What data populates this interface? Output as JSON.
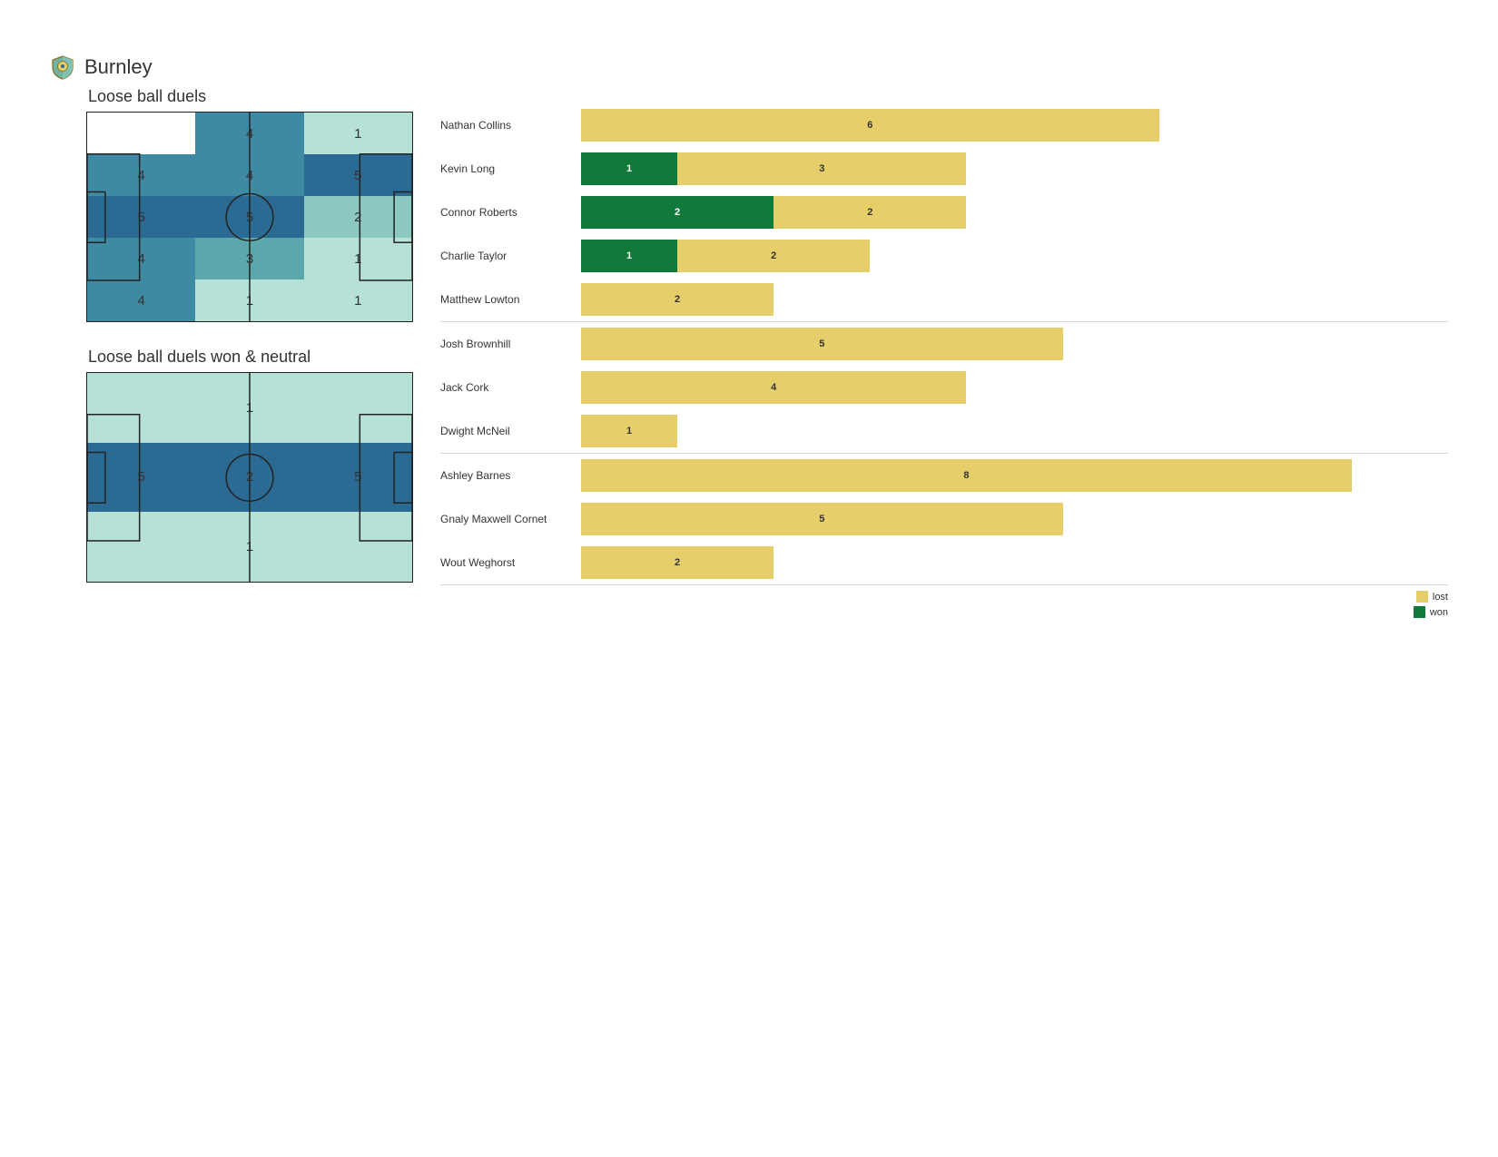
{
  "team": {
    "name": "Burnley"
  },
  "colors": {
    "won": "#0f7a3a",
    "lost": "#e6ce6a",
    "heat_scale": {
      "0": "#ffffff",
      "1": "#b6e1d7",
      "2": "#8cc9c1",
      "3": "#5ba7ab",
      "4": "#3f8aa3",
      "5": "#2b6a92"
    },
    "pitch_line": "#222222"
  },
  "heatmaps": {
    "duels": {
      "title": "Loose ball duels",
      "rows": 5,
      "cols": 3,
      "cells": [
        [
          null,
          4,
          1
        ],
        [
          4,
          4,
          5
        ],
        [
          5,
          5,
          2
        ],
        [
          4,
          3,
          1
        ],
        [
          4,
          1,
          1
        ]
      ]
    },
    "duels_won": {
      "title": "Loose ball duels won & neutral",
      "rows": 3,
      "cols": 3,
      "cells": [
        [
          null,
          1,
          null
        ],
        [
          5,
          2,
          5
        ],
        [
          null,
          1,
          null
        ]
      ],
      "row_colors": [
        "#b6e1d7",
        "#2b6a92",
        "#b6e1d7"
      ]
    }
  },
  "bar_chart": {
    "max_value": 9,
    "groups": [
      {
        "players": [
          {
            "name": "Nathan Collins",
            "won": 0,
            "lost": 6
          },
          {
            "name": "Kevin Long",
            "won": 1,
            "lost": 3
          },
          {
            "name": "Connor Roberts",
            "won": 2,
            "lost": 2
          },
          {
            "name": "Charlie Taylor",
            "won": 1,
            "lost": 2
          },
          {
            "name": "Matthew Lowton",
            "won": 0,
            "lost": 2
          }
        ]
      },
      {
        "players": [
          {
            "name": "Josh Brownhill",
            "won": 0,
            "lost": 5
          },
          {
            "name": "Jack Cork",
            "won": 0,
            "lost": 4
          },
          {
            "name": "Dwight McNeil",
            "won": 0,
            "lost": 1
          }
        ]
      },
      {
        "players": [
          {
            "name": "Ashley Barnes",
            "won": 0,
            "lost": 8
          },
          {
            "name": "Gnaly Maxwell Cornet",
            "won": 0,
            "lost": 5
          },
          {
            "name": "Wout Weghorst",
            "won": 0,
            "lost": 2
          }
        ]
      }
    ]
  },
  "legend": {
    "lost": "lost",
    "won": "won"
  }
}
